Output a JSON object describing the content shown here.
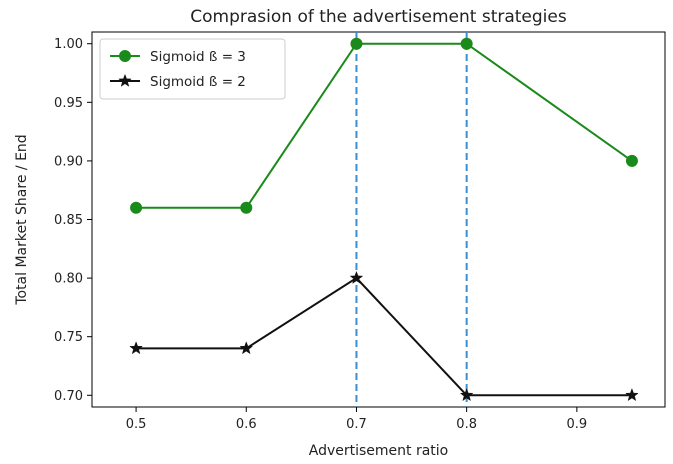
{
  "chart_data": {
    "type": "line",
    "title": "Comprasion of the advertisement strategies",
    "xlabel": "Advertisement ratio",
    "ylabel": "Total Market Share / End",
    "xlim": [
      0.46,
      0.98
    ],
    "ylim": [
      0.69,
      1.01
    ],
    "xticks": [
      0.5,
      0.6,
      0.7,
      0.8,
      0.9
    ],
    "xtick_labels": [
      "0.5",
      "0.6",
      "0.7",
      "0.8",
      "0.9"
    ],
    "yticks": [
      0.7,
      0.75,
      0.8,
      0.85,
      0.9,
      0.95,
      1.0
    ],
    "ytick_labels": [
      "0.70",
      "0.75",
      "0.80",
      "0.85",
      "0.90",
      "0.95",
      "1.00"
    ],
    "grid": false,
    "legend_position": "top-left",
    "series": [
      {
        "name": "Sigmoid ß = 3",
        "x": [
          0.5,
          0.6,
          0.7,
          0.8,
          0.95
        ],
        "y": [
          0.86,
          0.86,
          1.0,
          1.0,
          0.9
        ],
        "color": "#1a8a1a",
        "marker": "circle"
      },
      {
        "name": "Sigmoid ß = 2",
        "x": [
          0.5,
          0.6,
          0.7,
          0.8,
          0.95
        ],
        "y": [
          0.74,
          0.74,
          0.8,
          0.7,
          0.7
        ],
        "color": "#111111",
        "marker": "star"
      }
    ],
    "vlines": [
      {
        "x": 0.7,
        "style": "dashed",
        "color": "#3a8fd0"
      },
      {
        "x": 0.8,
        "style": "dashed",
        "color": "#3a8fd0"
      }
    ]
  }
}
